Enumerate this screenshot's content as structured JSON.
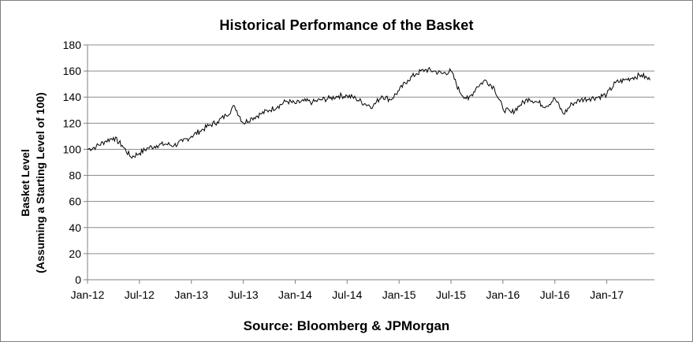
{
  "chart_data": {
    "type": "line",
    "title": "Historical Performance of the Basket",
    "ylabel_lines": [
      "Basket Level",
      "(Assuming a Starting Level of 100)"
    ],
    "xlabel": "",
    "source": "Source: Bloomberg & JPMorgan",
    "ylim": [
      0,
      180
    ],
    "yticks": [
      0,
      20,
      40,
      60,
      80,
      100,
      120,
      140,
      160,
      180
    ],
    "x_range": [
      "2012-01",
      "2017-06"
    ],
    "x_tick_labels": [
      "Jan-12",
      "Jul-12",
      "Jan-13",
      "Jul-13",
      "Jan-14",
      "Jul-14",
      "Jan-15",
      "Jul-15",
      "Jan-16",
      "Jul-16",
      "Jan-17"
    ],
    "grid": true,
    "line_color": "#000000",
    "series": [
      {
        "x": [
          "2012-01",
          "2012-02",
          "2012-03",
          "2012-04",
          "2012-05",
          "2012-06",
          "2012-07",
          "2012-08",
          "2012-09",
          "2012-10",
          "2012-11",
          "2012-12",
          "2013-01",
          "2013-02",
          "2013-03",
          "2013-04",
          "2013-05",
          "2013-06",
          "2013-07",
          "2013-08",
          "2013-09",
          "2013-10",
          "2013-11",
          "2013-12",
          "2014-01",
          "2014-02",
          "2014-03",
          "2014-04",
          "2014-05",
          "2014-06",
          "2014-07",
          "2014-08",
          "2014-09",
          "2014-10",
          "2014-11",
          "2014-12",
          "2015-01",
          "2015-02",
          "2015-03",
          "2015-04",
          "2015-05",
          "2015-06",
          "2015-07",
          "2015-08",
          "2015-09",
          "2015-10",
          "2015-11",
          "2015-12",
          "2016-01",
          "2016-02",
          "2016-03",
          "2016-04",
          "2016-05",
          "2016-06",
          "2016-07",
          "2016-08",
          "2016-09",
          "2016-10",
          "2016-11",
          "2016-12",
          "2017-01",
          "2017-02",
          "2017-03",
          "2017-04",
          "2017-05",
          "2017-06"
        ],
        "values": [
          100,
          102,
          106,
          109,
          103,
          94,
          97,
          101,
          103,
          104,
          103,
          106,
          110,
          114,
          118,
          121,
          126,
          133,
          120,
          124,
          127,
          130,
          133,
          137,
          135,
          137,
          136,
          138,
          139,
          141,
          141,
          139,
          135,
          133,
          141,
          138,
          145,
          153,
          158,
          161,
          160,
          158,
          160,
          144,
          138,
          148,
          153,
          147,
          131,
          128,
          134,
          139,
          136,
          133,
          139,
          127,
          135,
          138,
          139,
          140,
          142,
          151,
          153,
          155,
          157,
          153
        ]
      }
    ]
  }
}
